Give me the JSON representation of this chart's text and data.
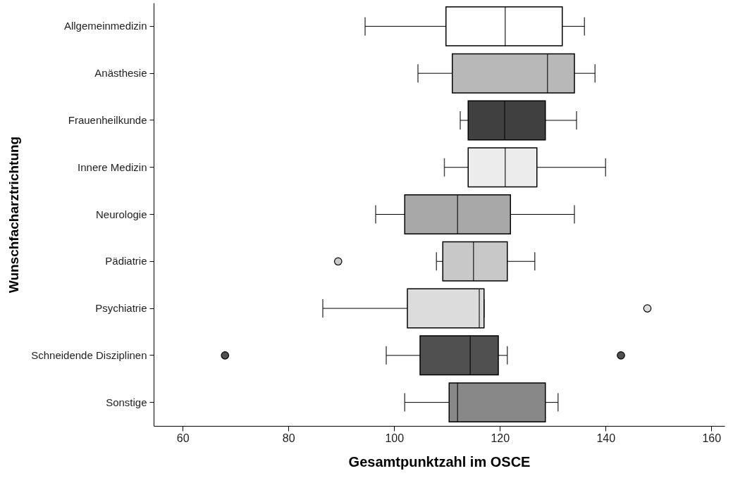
{
  "chart_data": {
    "type": "box",
    "orientation": "horizontal",
    "xlabel": "Gesamtpunktzahl im OSCE",
    "ylabel": "Wunschfacharztrichtung",
    "categories": [
      "Allgemeinmedizin",
      "Anästhesie",
      "Frauenheilkunde",
      "Innere Medizin",
      "Neurologie",
      "Pädiatrie",
      "Psychiatrie",
      "Schneidende Disziplinen",
      "Sonstige"
    ],
    "colors": [
      "#ffffff",
      "#b8b8b8",
      "#404040",
      "#ececec",
      "#a8a8a8",
      "#c8c8c8",
      "#dcdcdc",
      "#505050",
      "#888888"
    ],
    "boxes": [
      {
        "low": 94.5,
        "q1": 109.8,
        "median": 121,
        "q3": 131.8,
        "high": 136
      },
      {
        "low": 104.5,
        "q1": 111,
        "median": 129,
        "q3": 134.1,
        "high": 138
      },
      {
        "low": 112.5,
        "q1": 114,
        "median": 120.9,
        "q3": 128.6,
        "high": 134.5
      },
      {
        "low": 109.5,
        "q1": 114,
        "median": 121,
        "q3": 127,
        "high": 140
      },
      {
        "low": 96.5,
        "q1": 102,
        "median": 112,
        "q3": 122,
        "high": 134.1
      },
      {
        "low": 108,
        "q1": 109.2,
        "median": 115,
        "q3": 121.4,
        "high": 126.6,
        "outliers": [
          89.4
        ]
      },
      {
        "low": 86.5,
        "q1": 102.5,
        "median": 116.1,
        "q3": 117,
        "high": 117,
        "outliers": [
          147.9
        ]
      },
      {
        "low": 98.5,
        "q1": 104.9,
        "median": 114.4,
        "q3": 119.7,
        "high": 121.4,
        "outliers": [
          68,
          142.9
        ]
      },
      {
        "low": 102,
        "q1": 110.4,
        "median": 112,
        "q3": 128.6,
        "high": 131
      }
    ],
    "xlim": [
      54.5,
      162.5
    ],
    "xticks": [
      60,
      80,
      100,
      120,
      140,
      160
    ],
    "grid": false
  }
}
